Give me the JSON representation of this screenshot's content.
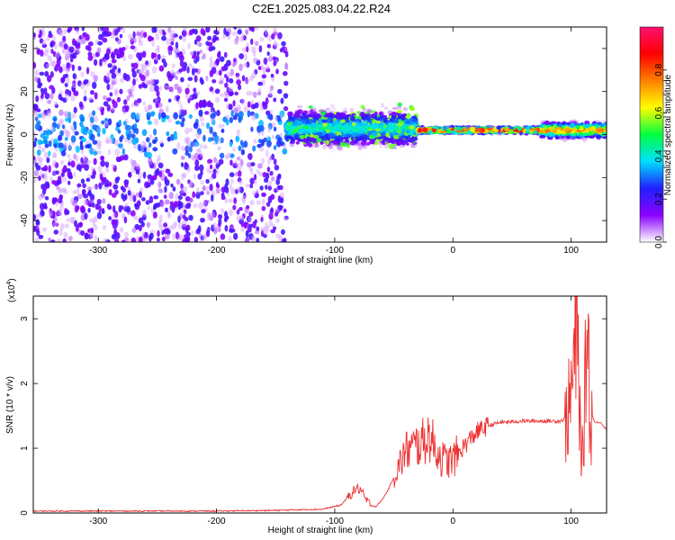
{
  "figure": {
    "title": "C2E1.2025.083.04.22.R24"
  },
  "chart_data": [
    {
      "type": "heatmap",
      "xlabel": "Height of straight line (km)",
      "ylabel": "Frequency (Hz)",
      "xlim": [
        -355,
        130
      ],
      "ylim": [
        -50,
        50
      ],
      "xticks": [
        -300,
        -200,
        -100,
        0,
        100
      ],
      "yticks": [
        -40,
        -20,
        0,
        20,
        40
      ],
      "grid": false,
      "colorbar": {
        "label": "Normalized spectral amplitude",
        "range": [
          0,
          1
        ],
        "ticks": [
          0.0,
          0.2,
          0.4,
          0.6,
          0.8
        ],
        "tick_labels": [
          "0.0",
          "0.2",
          "0.4",
          "0.6",
          "0.8"
        ],
        "colormap": [
          "#ffffff",
          "#8a00ff",
          "#2020ff",
          "#00e0ff",
          "#00ff40",
          "#ffff00",
          "#ff8000",
          "#ff0000",
          "#ff1070"
        ]
      },
      "regions": [
        {
          "x": [
            -355,
            -140
          ],
          "freq_spread": [
            -50,
            50
          ],
          "amplitude": 0.15
        },
        {
          "x": [
            -140,
            -30
          ],
          "freq_center": 3,
          "freq_halfwidth": 12,
          "amplitude": 0.4
        },
        {
          "x": [
            -30,
            75
          ],
          "freq_center": 2,
          "freq_halfwidth": 2,
          "amplitude": 0.85
        },
        {
          "x": [
            75,
            130
          ],
          "freq_center": 2,
          "freq_halfwidth": 5,
          "amplitude": 0.75
        }
      ]
    },
    {
      "type": "line",
      "xlabel": "Height of straight line (km)",
      "ylabel": "SNR (10 * v/v)",
      "y_multiplier": "(x10",
      "y_multiplier_exp": "4",
      "y_multiplier_close": ")",
      "xlim": [
        -355,
        130
      ],
      "ylim": [
        0,
        3.35
      ],
      "xticks": [
        -300,
        -200,
        -100,
        0,
        100
      ],
      "yticks": [
        0,
        1,
        2,
        3
      ],
      "grid": false,
      "series": [
        {
          "color": "#ee3030",
          "x": [
            -355,
            -300,
            -200,
            -150,
            -110,
            -95,
            -90,
            -85,
            -82,
            -78,
            -75,
            -70,
            -65,
            -60,
            -55,
            -50,
            -45,
            -40,
            -35,
            -30,
            -25,
            -20,
            -15,
            -10,
            -5,
            0,
            10,
            20,
            30,
            40,
            60,
            80,
            90,
            95,
            98,
            100,
            102,
            104,
            106,
            108,
            110,
            112,
            114,
            116,
            118,
            120,
            125,
            130
          ],
          "y": [
            0.03,
            0.03,
            0.03,
            0.04,
            0.06,
            0.12,
            0.22,
            0.32,
            0.38,
            0.36,
            0.24,
            0.12,
            0.1,
            0.2,
            0.35,
            0.55,
            0.75,
            0.95,
            1.0,
            1.05,
            1.1,
            1.2,
            1.0,
            0.85,
            0.8,
            0.82,
            1.05,
            1.25,
            1.35,
            1.4,
            1.42,
            1.42,
            1.42,
            1.45,
            1.6,
            1.8,
            2.2,
            2.8,
            2.3,
            1.2,
            0.8,
            2.0,
            3.2,
            1.3,
            1.5,
            1.4,
            1.4,
            1.28
          ]
        }
      ]
    }
  ]
}
